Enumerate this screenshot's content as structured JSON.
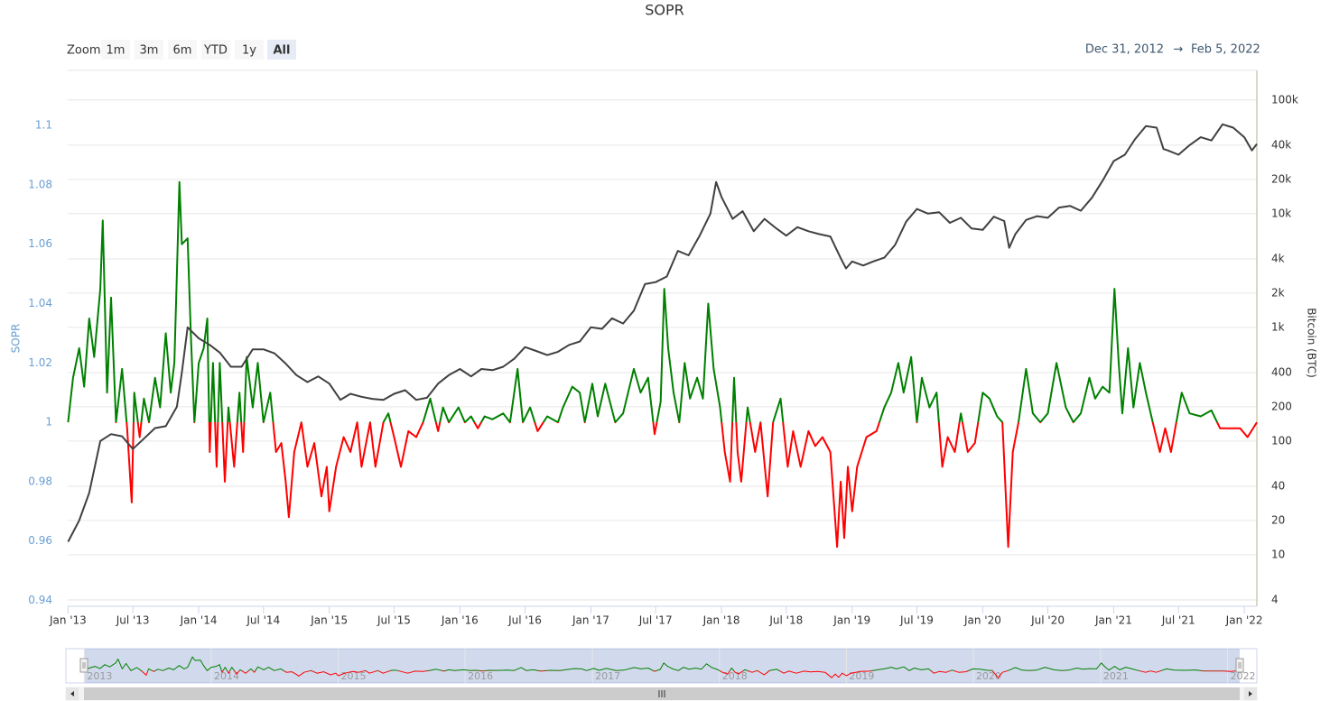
{
  "chart_data": {
    "type": "line",
    "title": "SOPR",
    "zoom": {
      "label": "Zoom",
      "buttons": [
        "1m",
        "3m",
        "6m",
        "YTD",
        "1y",
        "All"
      ],
      "selected": "All"
    },
    "range": {
      "from": "Dec 31, 2012",
      "arrow": "→",
      "to": "Feb 5, 2022"
    },
    "ylabel": "SOPR",
    "y2label": "Bitcoin (BTC)",
    "xlim": [
      "2012-12-31",
      "2022-02-05"
    ],
    "xticks": [
      {
        "value": "2013-01-01",
        "label": "Jan '13"
      },
      {
        "value": "2013-07-01",
        "label": "Jul '13"
      },
      {
        "value": "2014-01-01",
        "label": "Jan '14"
      },
      {
        "value": "2014-07-01",
        "label": "Jul '14"
      },
      {
        "value": "2015-01-01",
        "label": "Jan '15"
      },
      {
        "value": "2015-07-01",
        "label": "Jul '15"
      },
      {
        "value": "2016-01-01",
        "label": "Jan '16"
      },
      {
        "value": "2016-07-01",
        "label": "Jul '16"
      },
      {
        "value": "2017-01-01",
        "label": "Jan '17"
      },
      {
        "value": "2017-07-01",
        "label": "Jul '17"
      },
      {
        "value": "2018-01-01",
        "label": "Jan '18"
      },
      {
        "value": "2018-07-01",
        "label": "Jul '18"
      },
      {
        "value": "2019-01-01",
        "label": "Jan '19"
      },
      {
        "value": "2019-07-01",
        "label": "Jul '19"
      },
      {
        "value": "2020-01-01",
        "label": "Jan '20"
      },
      {
        "value": "2020-07-01",
        "label": "Jul '20"
      },
      {
        "value": "2021-01-01",
        "label": "Jan '21"
      },
      {
        "value": "2021-07-01",
        "label": "Jul '21"
      },
      {
        "value": "2022-01-01",
        "label": "Jan '22"
      }
    ],
    "ylim": [
      0.938,
      1.1186
    ],
    "yticks": [
      0.94,
      0.96,
      0.98,
      1,
      1.02,
      1.04,
      1.06,
      1.08,
      1.1
    ],
    "y2log": true,
    "y2lim": [
      3.52,
      182000
    ],
    "y2ticks": [
      4,
      10,
      20,
      40,
      100,
      200,
      400,
      {
        "value": 1000,
        "label": "1k"
      },
      {
        "value": 2000,
        "label": "2k"
      },
      {
        "value": 4000,
        "label": "4k"
      },
      {
        "value": 10000,
        "label": "10k"
      },
      {
        "value": 20000,
        "label": "20k"
      },
      {
        "value": 40000,
        "label": "40k"
      },
      {
        "value": 100000,
        "label": "100k"
      }
    ],
    "grid": true,
    "series": [
      {
        "name": "SOPR",
        "zones": {
          "threshold": 1,
          "above": "#008000",
          "below": "#ff0000"
        },
        "x": [
          "2013-01-01",
          "2013-01-15",
          "2013-02-01",
          "2013-02-15",
          "2013-03-01",
          "2013-03-15",
          "2013-04-01",
          "2013-04-08",
          "2013-04-20",
          "2013-05-01",
          "2013-05-15",
          "2013-06-01",
          "2013-06-15",
          "2013-06-28",
          "2013-07-05",
          "2013-07-20",
          "2013-08-01",
          "2013-08-15",
          "2013-09-01",
          "2013-09-15",
          "2013-10-01",
          "2013-10-15",
          "2013-10-25",
          "2013-11-01",
          "2013-11-08",
          "2013-11-15",
          "2013-12-01",
          "2013-12-10",
          "2013-12-20",
          "2014-01-01",
          "2014-01-15",
          "2014-01-25",
          "2014-02-01",
          "2014-02-10",
          "2014-02-20",
          "2014-03-01",
          "2014-03-15",
          "2014-03-25",
          "2014-04-10",
          "2014-04-25",
          "2014-05-05",
          "2014-05-15",
          "2014-06-01",
          "2014-06-15",
          "2014-07-01",
          "2014-07-20",
          "2014-08-05",
          "2014-08-20",
          "2014-09-01",
          "2014-09-10",
          "2014-09-25",
          "2014-10-15",
          "2014-11-01",
          "2014-11-20",
          "2014-12-10",
          "2014-12-25",
          "2015-01-01",
          "2015-01-20",
          "2015-02-10",
          "2015-03-01",
          "2015-03-20",
          "2015-04-01",
          "2015-04-25",
          "2015-05-10",
          "2015-06-01",
          "2015-06-15",
          "2015-07-01",
          "2015-07-20",
          "2015-08-10",
          "2015-09-01",
          "2015-09-20",
          "2015-10-10",
          "2015-11-01",
          "2015-11-15",
          "2015-12-01",
          "2015-12-28",
          "2016-01-15",
          "2016-02-01",
          "2016-02-20",
          "2016-03-10",
          "2016-04-01",
          "2016-05-01",
          "2016-05-20",
          "2016-06-10",
          "2016-06-25",
          "2016-07-15",
          "2016-08-05",
          "2016-09-01",
          "2016-10-01",
          "2016-10-15",
          "2016-11-10",
          "2016-12-01",
          "2016-12-15",
          "2017-01-05",
          "2017-01-20",
          "2017-02-10",
          "2017-03-10",
          "2017-04-01",
          "2017-05-01",
          "2017-05-20",
          "2017-06-10",
          "2017-06-28",
          "2017-07-15",
          "2017-07-25",
          "2017-08-05",
          "2017-08-20",
          "2017-09-05",
          "2017-09-20",
          "2017-10-05",
          "2017-10-25",
          "2017-11-10",
          "2017-11-25",
          "2017-12-10",
          "2017-12-28",
          "2018-01-10",
          "2018-01-25",
          "2018-02-05",
          "2018-02-15",
          "2018-02-25",
          "2018-03-15",
          "2018-04-05",
          "2018-04-20",
          "2018-05-10",
          "2018-05-25",
          "2018-06-15",
          "2018-07-05",
          "2018-07-20",
          "2018-08-10",
          "2018-09-01",
          "2018-09-20",
          "2018-10-10",
          "2018-11-01",
          "2018-11-20",
          "2018-11-30",
          "2018-12-10",
          "2018-12-20",
          "2019-01-01",
          "2019-01-15",
          "2019-02-10",
          "2019-03-10",
          "2019-04-01",
          "2019-04-20",
          "2019-05-10",
          "2019-05-25",
          "2019-06-15",
          "2019-07-01",
          "2019-07-15",
          "2019-08-05",
          "2019-08-25",
          "2019-09-10",
          "2019-09-25",
          "2019-10-15",
          "2019-11-01",
          "2019-11-20",
          "2019-12-10",
          "2020-01-01",
          "2020-01-20",
          "2020-02-10",
          "2020-02-25",
          "2020-03-12",
          "2020-03-25",
          "2020-04-10",
          "2020-05-01",
          "2020-05-20",
          "2020-06-10",
          "2020-07-01",
          "2020-07-25",
          "2020-08-20",
          "2020-09-10",
          "2020-10-01",
          "2020-10-25",
          "2020-11-10",
          "2020-12-01",
          "2020-12-20",
          "2021-01-03",
          "2021-01-15",
          "2021-01-25",
          "2021-02-10",
          "2021-02-25",
          "2021-03-15",
          "2021-04-01",
          "2021-04-20",
          "2021-05-10",
          "2021-05-25",
          "2021-06-10",
          "2021-06-25",
          "2021-07-10",
          "2021-08-01",
          "2021-09-01",
          "2021-10-01",
          "2021-10-25",
          "2021-11-20",
          "2021-12-20",
          "2022-01-10",
          "2022-02-05"
        ],
        "values": [
          1.0,
          1.015,
          1.025,
          1.012,
          1.035,
          1.022,
          1.045,
          1.068,
          1.01,
          1.042,
          1.0,
          1.018,
          0.998,
          0.973,
          1.01,
          0.995,
          1.008,
          1.0,
          1.015,
          1.005,
          1.03,
          1.01,
          1.02,
          1.05,
          1.081,
          1.06,
          1.062,
          1.03,
          1.0,
          1.02,
          1.025,
          1.035,
          0.99,
          1.02,
          0.985,
          1.02,
          0.98,
          1.005,
          0.985,
          1.01,
          0.99,
          1.022,
          1.005,
          1.02,
          1.0,
          1.01,
          0.99,
          0.993,
          0.98,
          0.968,
          0.99,
          1.0,
          0.985,
          0.993,
          0.975,
          0.985,
          0.97,
          0.985,
          0.995,
          0.99,
          1.0,
          0.985,
          1.0,
          0.985,
          1.0,
          1.003,
          0.995,
          0.985,
          0.997,
          0.995,
          1.0,
          1.008,
          0.997,
          1.005,
          1.0,
          1.005,
          1.0,
          1.002,
          0.998,
          1.002,
          1.001,
          1.003,
          1.0,
          1.018,
          1.0,
          1.005,
          0.997,
          1.002,
          1.0,
          1.005,
          1.012,
          1.01,
          1.0,
          1.013,
          1.002,
          1.013,
          1.0,
          1.003,
          1.018,
          1.01,
          1.015,
          0.996,
          1.007,
          1.045,
          1.025,
          1.01,
          1.0,
          1.02,
          1.008,
          1.015,
          1.008,
          1.04,
          1.018,
          1.005,
          0.99,
          0.98,
          1.015,
          0.99,
          0.98,
          1.005,
          0.99,
          1.0,
          0.975,
          1.0,
          1.008,
          0.985,
          0.997,
          0.985,
          0.997,
          0.992,
          0.995,
          0.99,
          0.958,
          0.98,
          0.961,
          0.985,
          0.97,
          0.985,
          0.995,
          0.997,
          1.005,
          1.01,
          1.02,
          1.01,
          1.022,
          1.0,
          1.015,
          1.005,
          1.01,
          0.985,
          0.995,
          0.99,
          1.003,
          0.99,
          0.993,
          1.01,
          1.008,
          1.002,
          1.0,
          0.958,
          0.99,
          1.0,
          1.018,
          1.003,
          1.0,
          1.003,
          1.02,
          1.005,
          1.0,
          1.003,
          1.015,
          1.008,
          1.012,
          1.01,
          1.045,
          1.02,
          1.003,
          1.025,
          1.005,
          1.02,
          1.01,
          1.0,
          0.99,
          0.998,
          0.99,
          1.0,
          1.01,
          1.003,
          1.002,
          1.004,
          0.998,
          0.998,
          0.998,
          0.995,
          1.0
        ]
      },
      {
        "name": "Bitcoin (BTC)",
        "axis": "y2",
        "color": "#404040",
        "x": [
          "2013-01-01",
          "2013-02-01",
          "2013-03-01",
          "2013-04-01",
          "2013-05-01",
          "2013-06-01",
          "2013-07-01",
          "2013-08-01",
          "2013-09-01",
          "2013-10-01",
          "2013-11-01",
          "2013-11-15",
          "2013-12-01",
          "2014-01-01",
          "2014-02-01",
          "2014-03-01",
          "2014-04-01",
          "2014-05-01",
          "2014-06-01",
          "2014-07-01",
          "2014-08-01",
          "2014-09-01",
          "2014-10-01",
          "2014-11-01",
          "2014-12-01",
          "2015-01-01",
          "2015-02-01",
          "2015-03-01",
          "2015-04-01",
          "2015-05-01",
          "2015-06-01",
          "2015-07-01",
          "2015-08-01",
          "2015-09-01",
          "2015-10-01",
          "2015-11-01",
          "2015-12-01",
          "2016-01-01",
          "2016-02-01",
          "2016-03-01",
          "2016-04-01",
          "2016-05-01",
          "2016-06-01",
          "2016-07-01",
          "2016-08-01",
          "2016-09-01",
          "2016-10-01",
          "2016-11-01",
          "2016-12-01",
          "2017-01-01",
          "2017-02-01",
          "2017-03-01",
          "2017-04-01",
          "2017-05-01",
          "2017-06-01",
          "2017-07-01",
          "2017-08-01",
          "2017-09-01",
          "2017-10-01",
          "2017-11-01",
          "2017-12-01",
          "2017-12-17",
          "2018-01-01",
          "2018-02-01",
          "2018-03-01",
          "2018-04-01",
          "2018-05-01",
          "2018-06-01",
          "2018-07-01",
          "2018-08-01",
          "2018-09-01",
          "2018-10-01",
          "2018-11-01",
          "2018-12-01",
          "2018-12-15",
          "2019-01-01",
          "2019-02-01",
          "2019-03-01",
          "2019-04-01",
          "2019-05-01",
          "2019-06-01",
          "2019-07-01",
          "2019-08-01",
          "2019-09-01",
          "2019-10-01",
          "2019-11-01",
          "2019-12-01",
          "2020-01-01",
          "2020-02-01",
          "2020-03-01",
          "2020-03-15",
          "2020-04-01",
          "2020-05-01",
          "2020-06-01",
          "2020-07-01",
          "2020-08-01",
          "2020-09-01",
          "2020-10-01",
          "2020-11-01",
          "2020-12-01",
          "2021-01-01",
          "2021-02-01",
          "2021-03-01",
          "2021-04-01",
          "2021-05-01",
          "2021-05-20",
          "2021-06-01",
          "2021-07-01",
          "2021-08-01",
          "2021-09-01",
          "2021-10-01",
          "2021-11-01",
          "2021-12-01",
          "2022-01-01",
          "2022-01-22",
          "2022-02-05"
        ],
        "values": [
          13,
          20,
          35,
          100,
          115,
          110,
          85,
          105,
          130,
          135,
          200,
          400,
          1000,
          800,
          700,
          600,
          450,
          450,
          640,
          640,
          590,
          480,
          380,
          330,
          370,
          320,
          230,
          260,
          245,
          235,
          230,
          260,
          280,
          230,
          240,
          320,
          380,
          430,
          370,
          430,
          420,
          450,
          530,
          670,
          620,
          570,
          610,
          700,
          750,
          1000,
          970,
          1200,
          1080,
          1400,
          2400,
          2500,
          2800,
          4700,
          4300,
          6400,
          10000,
          19000,
          14000,
          9000,
          10500,
          7000,
          9000,
          7500,
          6400,
          7600,
          7000,
          6600,
          6300,
          4000,
          3300,
          3800,
          3500,
          3800,
          4100,
          5300,
          8500,
          11000,
          10000,
          10300,
          8300,
          9200,
          7400,
          7200,
          9400,
          8600,
          5000,
          6600,
          8800,
          9500,
          9200,
          11300,
          11700,
          10600,
          13800,
          19500,
          29000,
          33000,
          45000,
          59000,
          57000,
          37000,
          36000,
          33000,
          40000,
          47000,
          44000,
          61000,
          57000,
          47000,
          36000,
          41000
        ]
      }
    ],
    "navigator": {
      "xticks": [
        {
          "value": "2013-01-01",
          "label": "2013"
        },
        {
          "value": "2014-01-01",
          "label": "2014"
        },
        {
          "value": "2015-01-01",
          "label": "2015"
        },
        {
          "value": "2016-01-01",
          "label": "2016"
        },
        {
          "value": "2017-01-01",
          "label": "2017"
        },
        {
          "value": "2018-01-01",
          "label": "2018"
        },
        {
          "value": "2019-01-01",
          "label": "2019"
        },
        {
          "value": "2020-01-01",
          "label": "2020"
        },
        {
          "value": "2021-01-01",
          "label": "2021"
        },
        {
          "value": "2022-01-01",
          "label": "2022"
        }
      ]
    }
  }
}
